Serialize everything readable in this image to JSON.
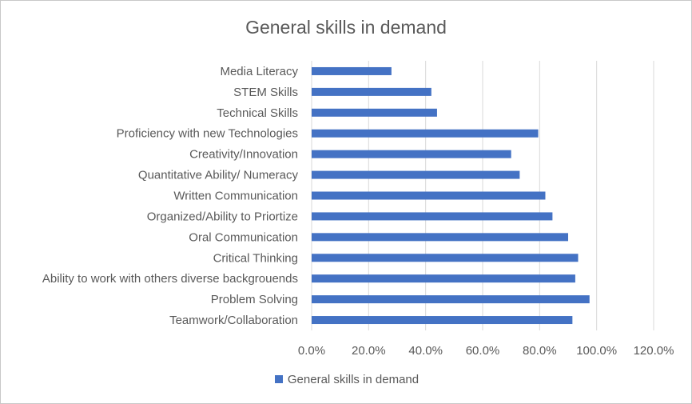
{
  "chart_data": {
    "type": "bar",
    "orientation": "horizontal",
    "title": "General  skills in demand",
    "categories": [
      "Media Literacy",
      "STEM Skills",
      "Technical Skills",
      "Proficiency with new Technologies",
      "Creativity/Innovation",
      "Quantitative Ability/ Numeracy",
      "Written Communication",
      "Organized/Ability to Priortize",
      "Oral Communication",
      "Critical Thinking",
      "Ability to work with others diverse backgrouends",
      "Problem Solving",
      "Teamwork/Collaboration"
    ],
    "series": [
      {
        "name": "General skills in demand",
        "values": [
          0.28,
          0.42,
          0.44,
          0.795,
          0.7,
          0.73,
          0.82,
          0.845,
          0.9,
          0.935,
          0.925,
          0.975,
          0.915
        ]
      }
    ],
    "x_ticks": [
      "0.0%",
      "20.0%",
      "40.0%",
      "60.0%",
      "80.0%",
      "100.0%",
      "120.0%"
    ],
    "xlim": [
      0,
      1.2
    ],
    "grid": "vertical",
    "legend_position": "bottom",
    "colors": {
      "bar": "#4472c4",
      "grid": "#d9d9d9",
      "text": "#595959"
    }
  },
  "legend": {
    "label": "General skills in demand"
  }
}
